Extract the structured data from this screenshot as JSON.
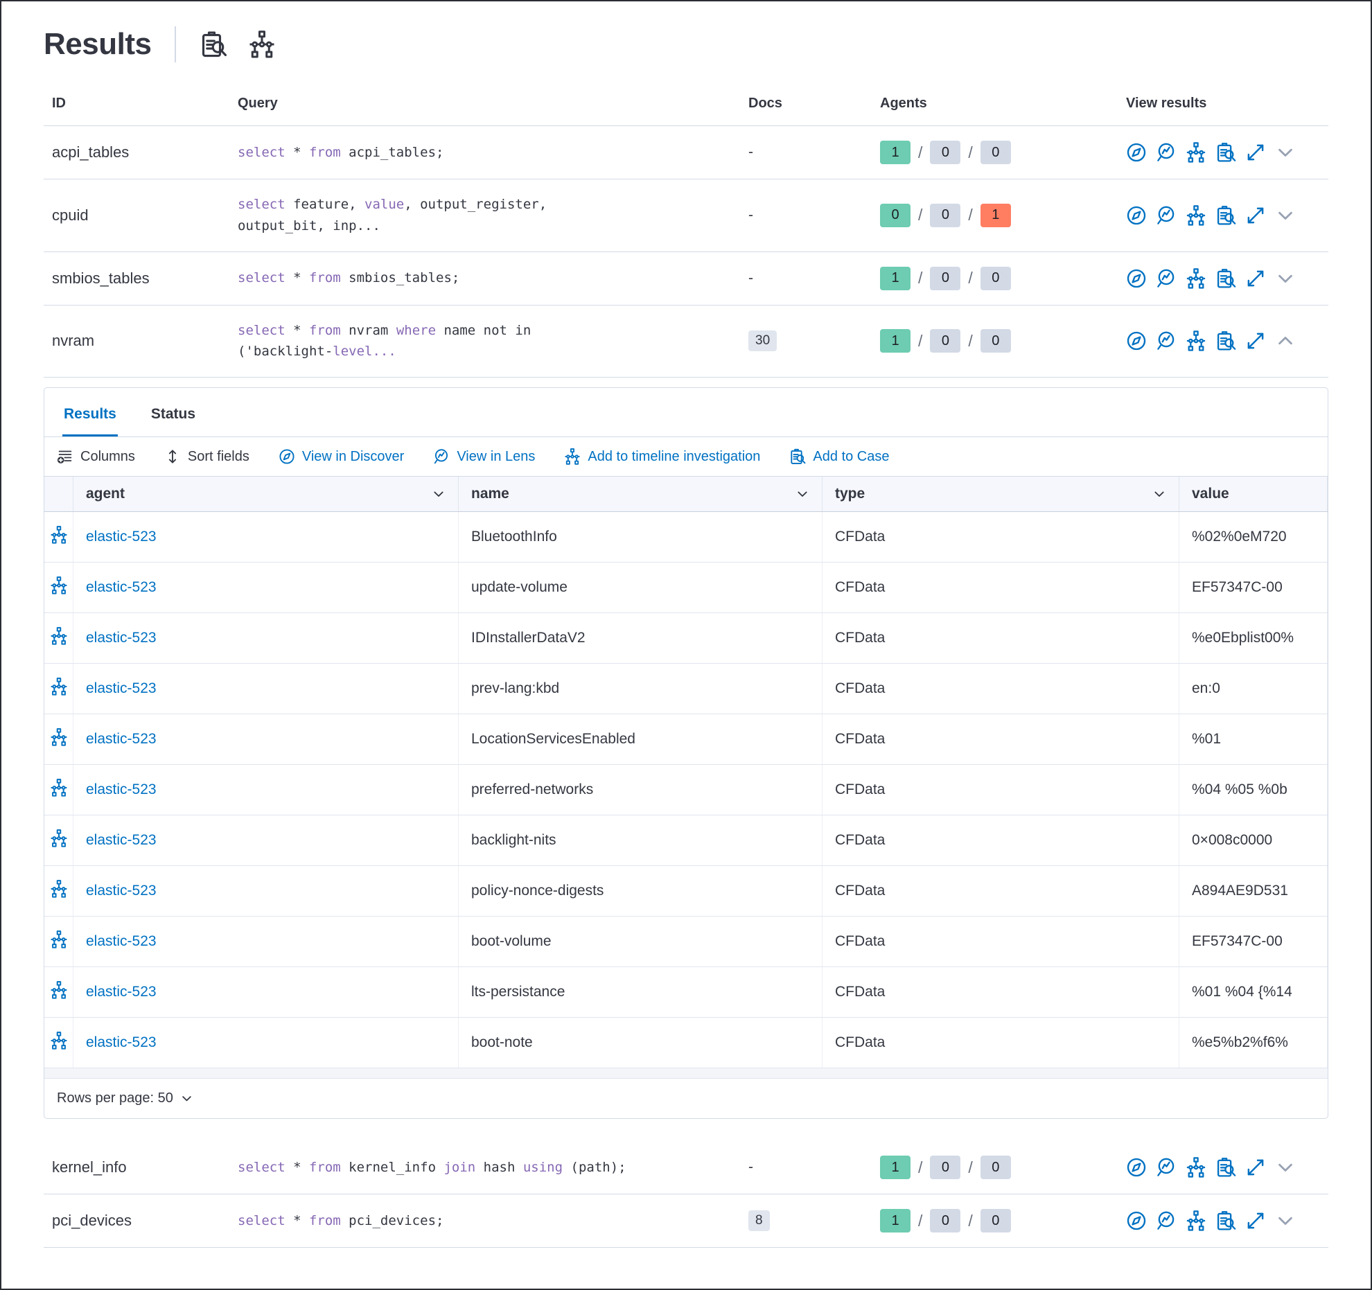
{
  "colors": {
    "primary": "#0071c2",
    "sql_keyword": "#8668b4",
    "text": "#343741",
    "badge_green": "#6dccb1",
    "badge_gray": "#d3dae6",
    "badge_red": "#ff7e62"
  },
  "header": {
    "title": "Results",
    "icons": [
      "clipboard-search-icon",
      "timeline-icon"
    ]
  },
  "table": {
    "columns": {
      "id": "ID",
      "query": "Query",
      "docs": "Docs",
      "agents": "Agents",
      "view_results": "View results"
    },
    "view_icons": [
      "discover-compass-icon",
      "lens-icon",
      "timeline-icon",
      "case-clipboard-icon",
      "expand-icon",
      "chevron-icon"
    ],
    "rows": [
      {
        "id": "acpi_tables",
        "query": [
          {
            "t": "select",
            "k": true
          },
          {
            "t": " * "
          },
          {
            "t": "from",
            "k": true
          },
          {
            "t": " acpi_tables;"
          }
        ],
        "docs": "-",
        "docs_badge": false,
        "agents": [
          {
            "count": "1",
            "color": "green"
          },
          {
            "count": "0",
            "color": "gray"
          },
          {
            "count": "0",
            "color": "gray"
          }
        ],
        "expanded": false
      },
      {
        "id": "cpuid",
        "query": [
          {
            "t": "select",
            "k": true
          },
          {
            "t": " feature, "
          },
          {
            "t": "value",
            "k": true
          },
          {
            "t": ", output_register,\noutput_bit, inp..."
          }
        ],
        "docs": "-",
        "docs_badge": false,
        "agents": [
          {
            "count": "0",
            "color": "green"
          },
          {
            "count": "0",
            "color": "gray"
          },
          {
            "count": "1",
            "color": "red"
          }
        ],
        "expanded": false
      },
      {
        "id": "smbios_tables",
        "query": [
          {
            "t": "select",
            "k": true
          },
          {
            "t": " * "
          },
          {
            "t": "from",
            "k": true
          },
          {
            "t": " smbios_tables;"
          }
        ],
        "docs": "-",
        "docs_badge": false,
        "agents": [
          {
            "count": "1",
            "color": "green"
          },
          {
            "count": "0",
            "color": "gray"
          },
          {
            "count": "0",
            "color": "gray"
          }
        ],
        "expanded": false
      },
      {
        "id": "nvram",
        "query": [
          {
            "t": "select",
            "k": true
          },
          {
            "t": " * "
          },
          {
            "t": "from",
            "k": true
          },
          {
            "t": " nvram "
          },
          {
            "t": "where",
            "k": true
          },
          {
            "t": " name not in\n('backlight-"
          },
          {
            "t": "level...",
            "k": true
          }
        ],
        "docs": "30",
        "docs_badge": true,
        "agents": [
          {
            "count": "1",
            "color": "green"
          },
          {
            "count": "0",
            "color": "gray"
          },
          {
            "count": "0",
            "color": "gray"
          }
        ],
        "expanded": true
      },
      {
        "id": "kernel_info",
        "query": [
          {
            "t": "select",
            "k": true
          },
          {
            "t": " * "
          },
          {
            "t": "from",
            "k": true
          },
          {
            "t": " kernel_info "
          },
          {
            "t": "join",
            "k": true
          },
          {
            "t": " hash "
          },
          {
            "t": "using",
            "k": true
          },
          {
            "t": " (path);"
          }
        ],
        "docs": "-",
        "docs_badge": false,
        "agents": [
          {
            "count": "1",
            "color": "green"
          },
          {
            "count": "0",
            "color": "gray"
          },
          {
            "count": "0",
            "color": "gray"
          }
        ],
        "expanded": false
      },
      {
        "id": "pci_devices",
        "query": [
          {
            "t": "select",
            "k": true
          },
          {
            "t": " * "
          },
          {
            "t": "from",
            "k": true
          },
          {
            "t": " pci_devices;"
          }
        ],
        "docs": "8",
        "docs_badge": true,
        "agents": [
          {
            "count": "1",
            "color": "green"
          },
          {
            "count": "0",
            "color": "gray"
          },
          {
            "count": "0",
            "color": "gray"
          }
        ],
        "expanded": false
      }
    ]
  },
  "panel": {
    "tabs": [
      {
        "label": "Results",
        "active": true
      },
      {
        "label": "Status",
        "active": false
      }
    ],
    "toolbar": [
      {
        "label": "Columns",
        "icon": "columns",
        "style": "dark"
      },
      {
        "label": "Sort fields",
        "icon": "sort",
        "style": "dark"
      },
      {
        "label": "View in Discover",
        "icon": "compass",
        "style": "blue"
      },
      {
        "label": "View in Lens",
        "icon": "lens",
        "style": "blue"
      },
      {
        "label": "Add to timeline investigation",
        "icon": "timeline",
        "style": "blue"
      },
      {
        "label": "Add to Case",
        "icon": "clipboard-search",
        "style": "blue"
      }
    ],
    "grid": {
      "headers": [
        {
          "label": "agent",
          "sortable": true
        },
        {
          "label": "name",
          "sortable": true
        },
        {
          "label": "type",
          "sortable": true
        },
        {
          "label": "value",
          "sortable": false
        }
      ],
      "rows": [
        {
          "agent": "elastic-523",
          "name": "BluetoothInfo",
          "type": "CFData",
          "value": "%02%0eM720"
        },
        {
          "agent": "elastic-523",
          "name": "update-volume",
          "type": "CFData",
          "value": "EF57347C-00"
        },
        {
          "agent": "elastic-523",
          "name": "IDInstallerDataV2",
          "type": "CFData",
          "value": "%e0Ebplist00%"
        },
        {
          "agent": "elastic-523",
          "name": "prev-lang:kbd",
          "type": "CFData",
          "value": "en:0"
        },
        {
          "agent": "elastic-523",
          "name": "LocationServicesEnabled",
          "type": "CFData",
          "value": "%01"
        },
        {
          "agent": "elastic-523",
          "name": "preferred-networks",
          "type": "CFData",
          "value": "%04 %05 %0b"
        },
        {
          "agent": "elastic-523",
          "name": "backlight-nits",
          "type": "CFData",
          "value": "0×008c0000"
        },
        {
          "agent": "elastic-523",
          "name": "policy-nonce-digests",
          "type": "CFData",
          "value": "A894AE9D531"
        },
        {
          "agent": "elastic-523",
          "name": "boot-volume",
          "type": "CFData",
          "value": "EF57347C-00"
        },
        {
          "agent": "elastic-523",
          "name": "lts-persistance",
          "type": "CFData",
          "value": "%01 %04 {%14"
        },
        {
          "agent": "elastic-523",
          "name": "boot-note",
          "type": "CFData",
          "value": "%e5%b2%f6%"
        }
      ]
    },
    "footer": {
      "rows_per_page": "Rows per page: 50"
    }
  }
}
